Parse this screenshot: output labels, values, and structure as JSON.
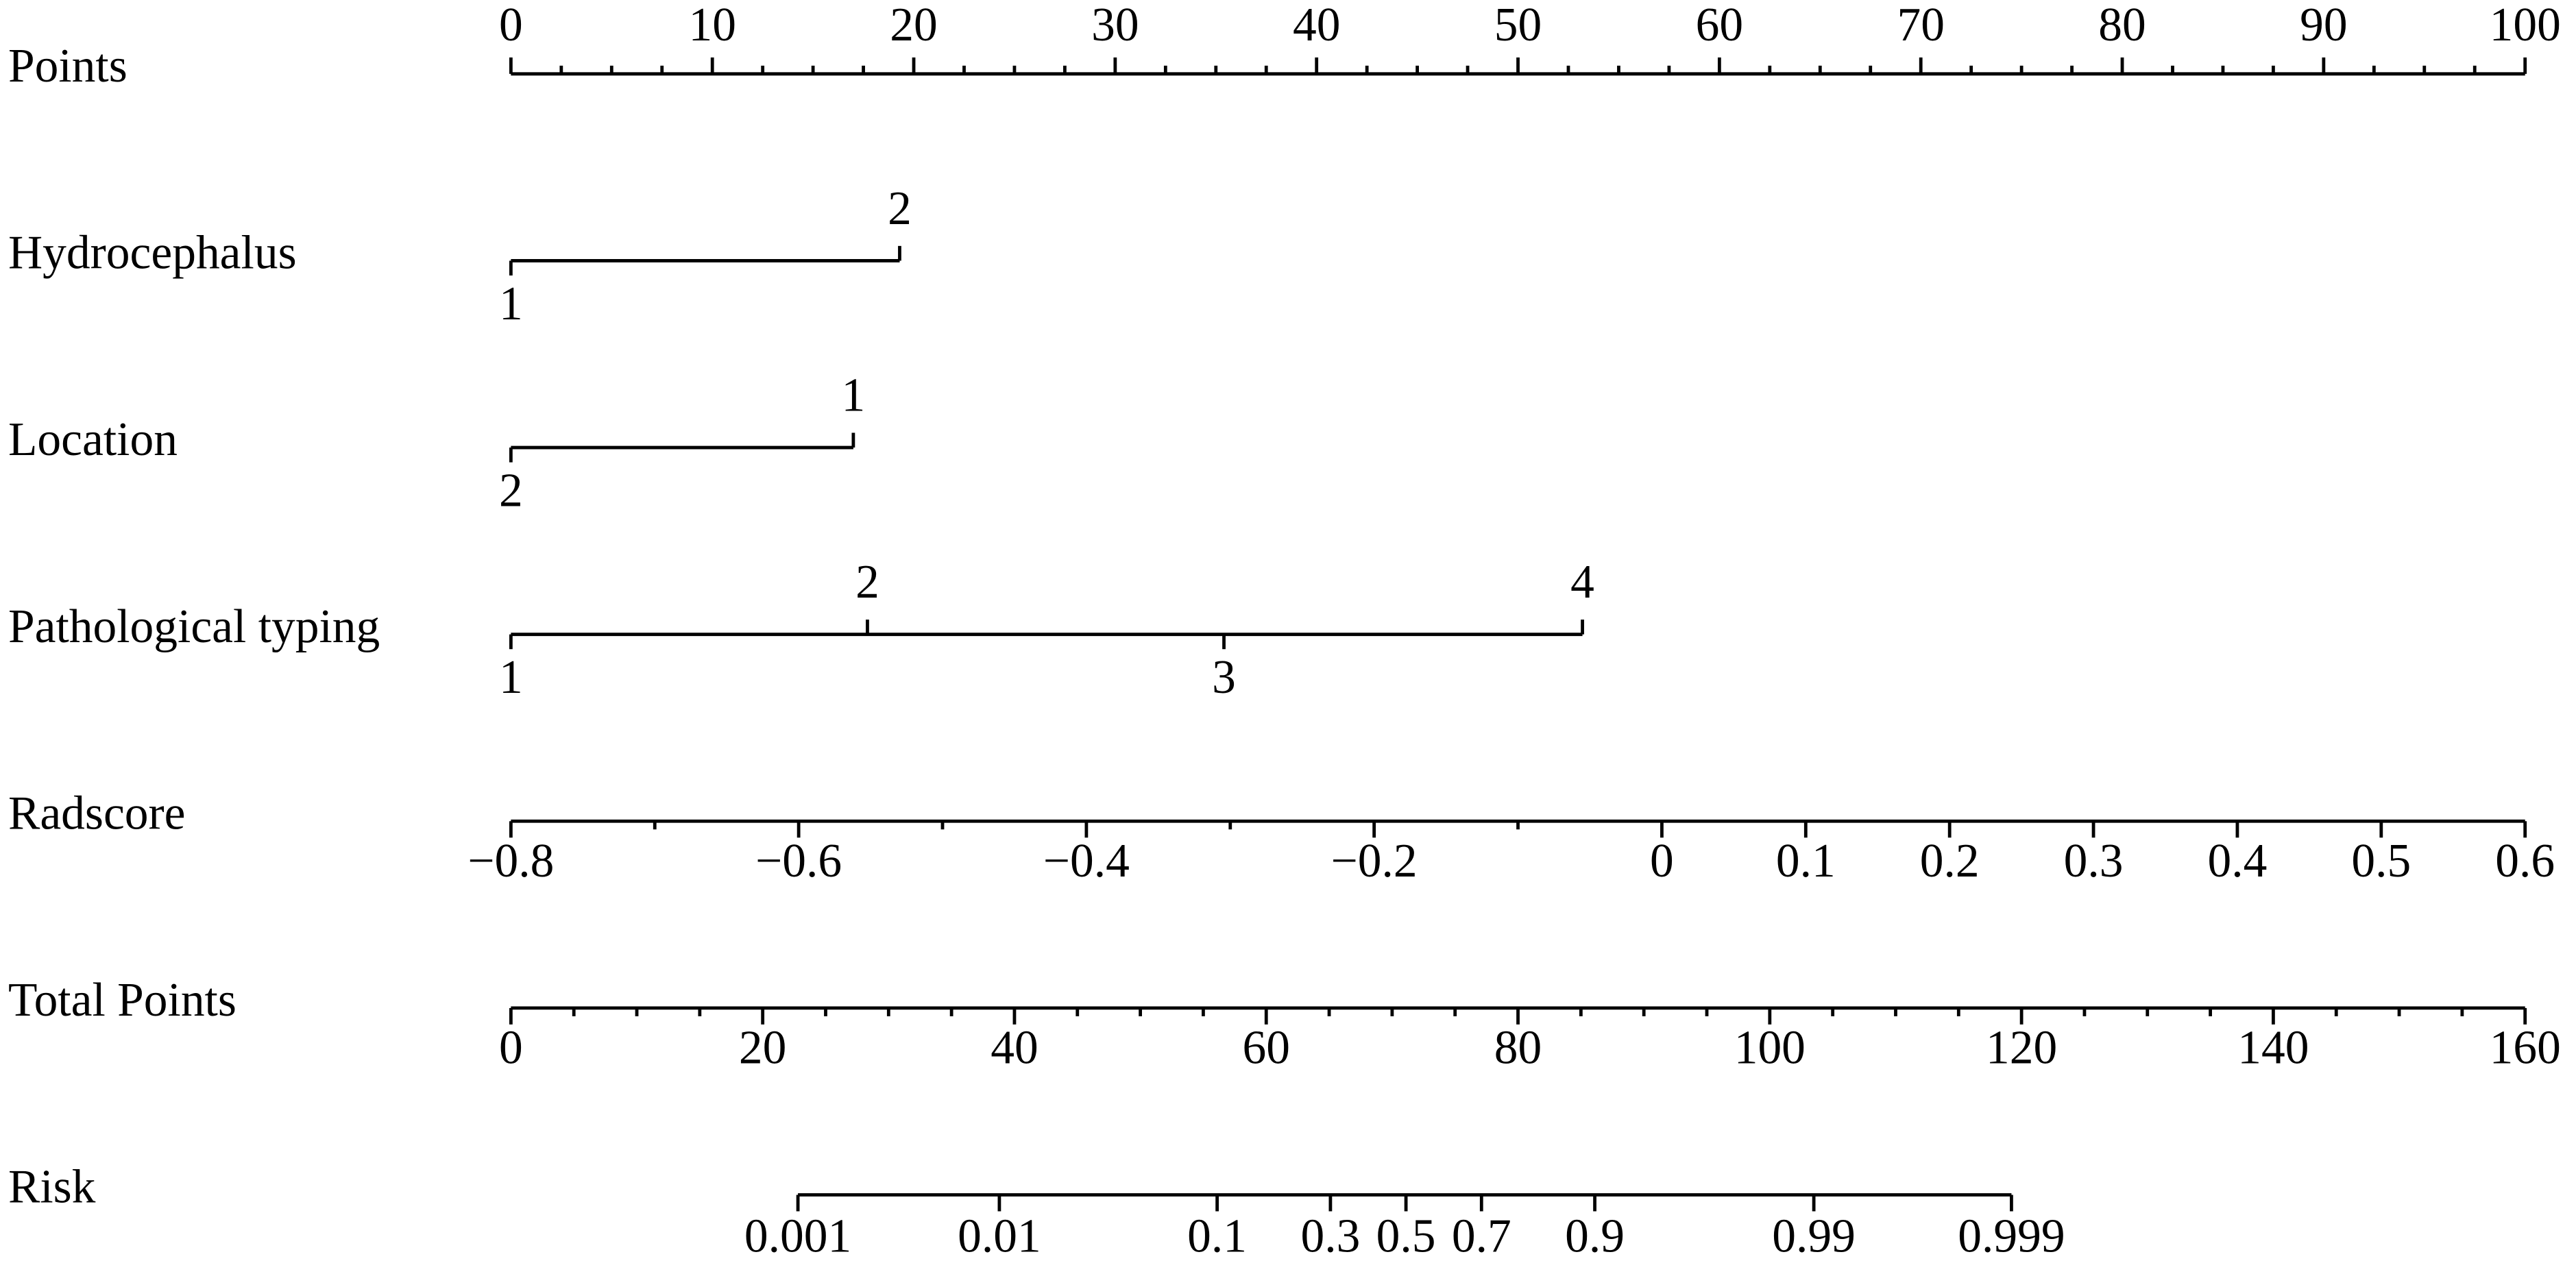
{
  "chart_data": {
    "type": "nomogram",
    "points": {
      "label": "Points",
      "xlim": [
        0,
        100
      ],
      "ticks": [
        0,
        10,
        20,
        30,
        40,
        50,
        60,
        70,
        80,
        90,
        100
      ],
      "minor_ticks": [
        2.5,
        5,
        7.5,
        12.5,
        15,
        17.5,
        22.5,
        25,
        27.5,
        32.5,
        35,
        37.5,
        42.5,
        45,
        47.5,
        52.5,
        55,
        57.5,
        62.5,
        65,
        67.5,
        72.5,
        75,
        77.5,
        82.5,
        85,
        87.5,
        92.5,
        95,
        97.5
      ]
    },
    "variables": [
      {
        "label": "Hydrocephalus",
        "levels": [
          "1",
          "2"
        ],
        "points": [
          0,
          19.3
        ]
      },
      {
        "label": "Location",
        "levels": [
          "2",
          "1"
        ],
        "points": [
          0,
          17
        ]
      },
      {
        "label": "Pathological typing",
        "levels": [
          "1",
          "2",
          "3",
          "4"
        ],
        "points": [
          0,
          17.7,
          35.4,
          53.2
        ]
      }
    ],
    "radscore": {
      "label": "Radscore",
      "xlim": [
        -0.8,
        0.6
      ],
      "ticks": [
        {
          "value": -0.8,
          "label": "−0.8"
        },
        {
          "value": -0.6,
          "label": "−0.6"
        },
        {
          "value": -0.4,
          "label": "−0.4"
        },
        {
          "value": -0.2,
          "label": "−0.2"
        },
        0,
        0.1,
        0.2,
        0.3,
        0.4,
        0.5,
        0.6
      ],
      "minor_ticks": [
        -0.7,
        -0.5,
        -0.3,
        -0.1
      ]
    },
    "total_points": {
      "label": "Total Points",
      "xlim": [
        0,
        160
      ],
      "ticks": [
        0,
        20,
        40,
        60,
        80,
        100,
        120,
        140,
        160
      ],
      "minor_ticks": [
        5,
        10,
        15,
        25,
        30,
        35,
        45,
        50,
        55,
        65,
        70,
        75,
        85,
        90,
        95,
        105,
        110,
        115,
        125,
        130,
        135,
        145,
        150,
        155
      ]
    },
    "risk": {
      "label": "Risk",
      "values": [
        0.001,
        0.01,
        0.1,
        0.3,
        0.5,
        0.7,
        0.9,
        0.99,
        0.999
      ],
      "total_points": [
        22.8,
        38.8,
        56.1,
        65.1,
        71.1,
        77.1,
        86.1,
        103.5,
        119.2
      ]
    }
  }
}
